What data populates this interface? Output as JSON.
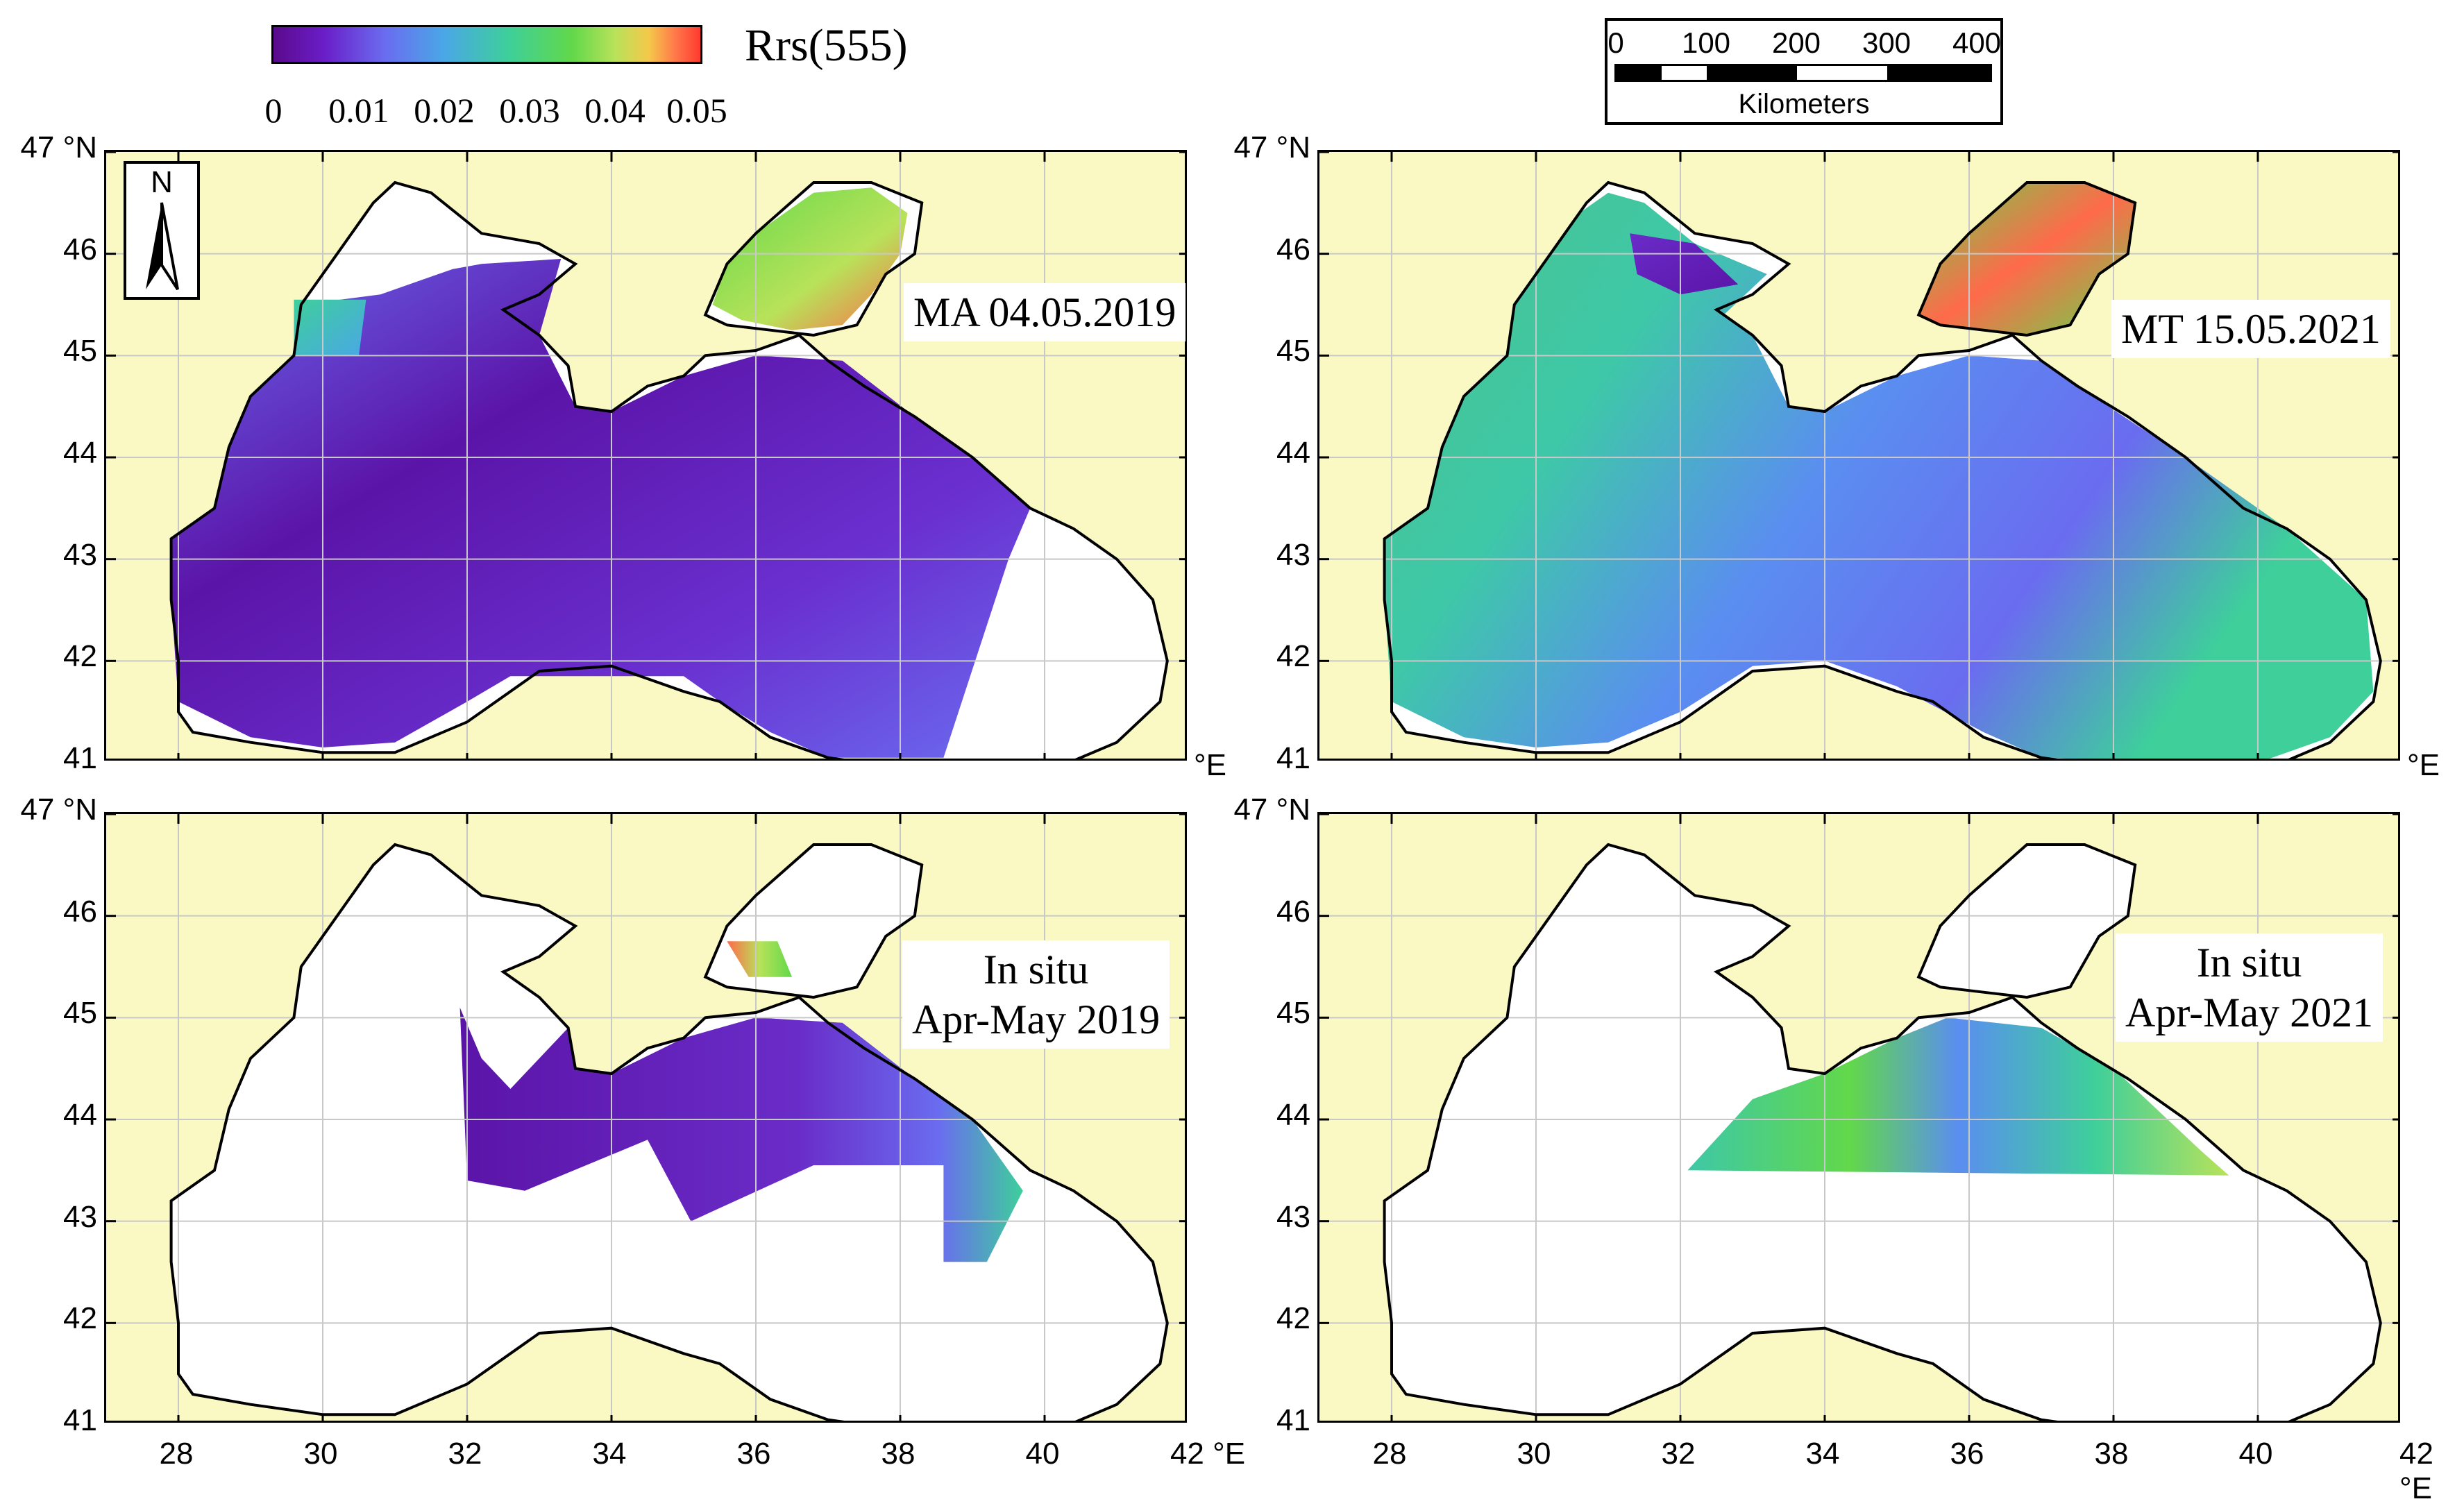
{
  "colorbar": {
    "title": "Rrs(555)",
    "ticks": [
      "0",
      "0.01",
      "0.02",
      "0.03",
      "0.04",
      "0.05"
    ]
  },
  "scalebar": {
    "ticks": [
      "0",
      "100",
      "200",
      "300",
      "400"
    ],
    "unit": "Kilometers"
  },
  "north_arrow": {
    "label": "N",
    "icon": "north-arrow-icon"
  },
  "latitude_labels": [
    "47 °N",
    "46",
    "45",
    "44",
    "43",
    "42",
    "41"
  ],
  "longitude_labels": [
    "28",
    "30",
    "32",
    "34",
    "36",
    "38",
    "40",
    "42 °E"
  ],
  "right_edge_unit": "°E",
  "panels": [
    {
      "label_lines": [
        "MA 04.05.2019"
      ]
    },
    {
      "label_lines": [
        "MT 15.05.2021"
      ]
    },
    {
      "label_lines": [
        "In situ",
        "Apr-May 2019"
      ]
    },
    {
      "label_lines": [
        "In situ",
        "Apr-May 2021"
      ]
    }
  ],
  "colors": {
    "land": "#fbf9c3",
    "water_no_data": "#ffffff",
    "low": "#5a0a8c",
    "mid": "#3ecf9b",
    "high": "#ff3a30"
  }
}
